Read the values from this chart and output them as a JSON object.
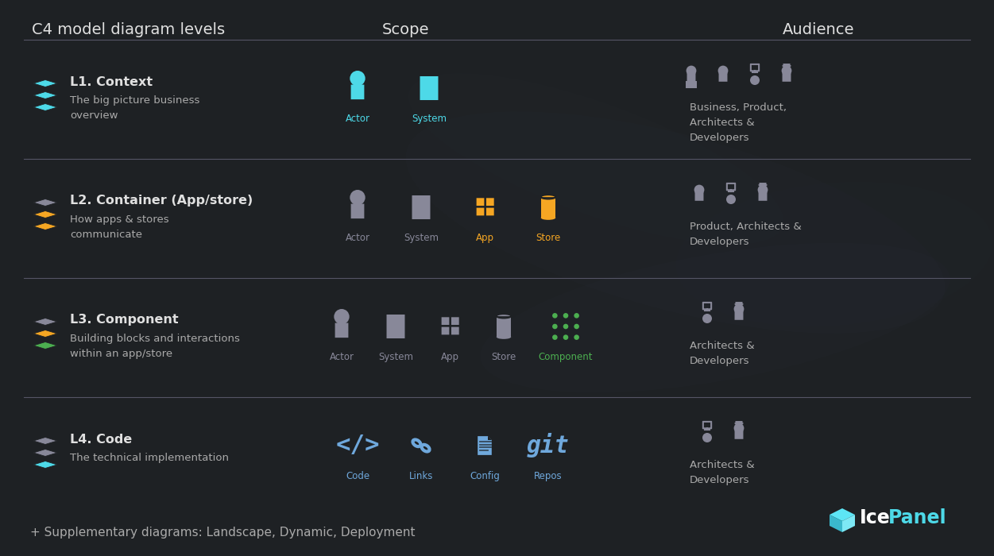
{
  "bg_color": "#1e2124",
  "text_color": "#e0e0e0",
  "cyan": "#4dd9e8",
  "orange": "#f5a623",
  "green": "#4caf50",
  "blue_link": "#6fa8dc",
  "gray_icon": "#888899",
  "divider_color": "#555566",
  "title": "C4 model diagram levels",
  "scope_title": "Scope",
  "audience_title": "Audience",
  "rows": [
    {
      "level": "L1. Context",
      "desc": "The big picture business\noverview",
      "stack_colors": [
        "#4dd9e8",
        "#4dd9e8",
        "#4dd9e8"
      ],
      "scope_icons": [
        {
          "label": "Actor",
          "color": "#4dd9e8",
          "type": "person"
        },
        {
          "label": "System",
          "color": "#4dd9e8",
          "type": "rect"
        }
      ],
      "audience_text": "Business, Product,\nArchitects &\nDevelopers",
      "audience_icons": 4
    },
    {
      "level": "L2. Container (App/store)",
      "desc": "How apps & stores\ncommunicate",
      "stack_colors": [
        "#888899",
        "#f5a623",
        "#f5a623"
      ],
      "scope_icons": [
        {
          "label": "Actor",
          "color": "#888899",
          "type": "person"
        },
        {
          "label": "System",
          "color": "#888899",
          "type": "rect"
        },
        {
          "label": "App",
          "color": "#f5a623",
          "type": "grid"
        },
        {
          "label": "Store",
          "color": "#f5a623",
          "type": "cylinder"
        }
      ],
      "audience_text": "Product, Architects &\nDevelopers",
      "audience_icons": 3
    },
    {
      "level": "L3. Component",
      "desc": "Building blocks and interactions\nwithin an app/store",
      "stack_colors": [
        "#888899",
        "#f5a623",
        "#4caf50"
      ],
      "scope_icons": [
        {
          "label": "Actor",
          "color": "#888899",
          "type": "person"
        },
        {
          "label": "System",
          "color": "#888899",
          "type": "rect"
        },
        {
          "label": "App",
          "color": "#888899",
          "type": "grid"
        },
        {
          "label": "Store",
          "color": "#888899",
          "type": "cylinder"
        },
        {
          "label": "Component",
          "color": "#4caf50",
          "type": "dotgrid"
        }
      ],
      "audience_text": "Architects &\nDevelopers",
      "audience_icons": 2
    },
    {
      "level": "L4. Code",
      "desc": "The technical implementation",
      "stack_colors": [
        "#888899",
        "#888899",
        "#4dd9e8"
      ],
      "scope_icons": [
        {
          "label": "Code",
          "color": "#6fa8dc",
          "type": "code"
        },
        {
          "label": "Links",
          "color": "#6fa8dc",
          "type": "link"
        },
        {
          "label": "Config",
          "color": "#6fa8dc",
          "type": "file"
        },
        {
          "label": "Repos",
          "color": "#6fa8dc",
          "type": "git"
        }
      ],
      "audience_text": "Architects &\nDevelopers",
      "audience_icons": 2
    }
  ],
  "footer": "+ Supplementary diagrams: Landscape, Dynamic, Deployment"
}
